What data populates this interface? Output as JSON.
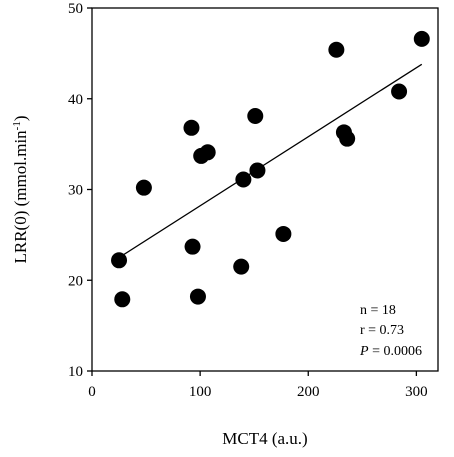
{
  "chart_data": {
    "type": "scatter",
    "title": "",
    "xlabel": "MCT4 (a.u.)",
    "ylabel": "LRR(0) (mmol.min",
    "ylabel_sup": "-1",
    "ylabel_close": ")",
    "xlim": [
      0,
      320
    ],
    "ylim": [
      10,
      50
    ],
    "xticks": [
      "0",
      "100",
      "200",
      "300"
    ],
    "yticks": [
      "10",
      "20",
      "30",
      "40",
      "50"
    ],
    "grid": false,
    "legend": "none",
    "point_color": "#000000",
    "series": [
      {
        "points": [
          {
            "x": 25,
            "y": 22.2
          },
          {
            "x": 28,
            "y": 17.9
          },
          {
            "x": 48,
            "y": 30.2
          },
          {
            "x": 92,
            "y": 36.8
          },
          {
            "x": 93,
            "y": 23.7
          },
          {
            "x": 98,
            "y": 18.2
          },
          {
            "x": 101,
            "y": 33.7
          },
          {
            "x": 107,
            "y": 34.1
          },
          {
            "x": 138,
            "y": 21.5
          },
          {
            "x": 140,
            "y": 31.1
          },
          {
            "x": 151,
            "y": 38.1
          },
          {
            "x": 153,
            "y": 32.1
          },
          {
            "x": 177,
            "y": 25.1
          },
          {
            "x": 226,
            "y": 45.4
          },
          {
            "x": 233,
            "y": 36.3
          },
          {
            "x": 236,
            "y": 35.6
          },
          {
            "x": 284,
            "y": 40.8
          },
          {
            "x": 305,
            "y": 46.6
          }
        ]
      }
    ],
    "trendline": {
      "x": [
        25,
        305
      ],
      "y": [
        22.5,
        43.8
      ]
    },
    "annotations": {
      "n": "n = 18",
      "r": "r = 0.73",
      "p_label": "P",
      "p_value": " = 0.0006"
    }
  }
}
